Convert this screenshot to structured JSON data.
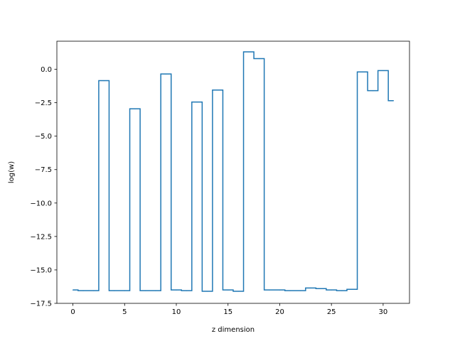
{
  "chart_data": {
    "type": "line",
    "drawstyle": "steps-mid",
    "xlabel": "z dimension",
    "ylabel": "log(w)",
    "xlim": [
      -1.55,
      32.55
    ],
    "ylim": [
      -17.5,
      2.1
    ],
    "xticks": [
      0,
      5,
      10,
      15,
      20,
      25,
      30
    ],
    "xtick_labels": [
      "0",
      "5",
      "10",
      "15",
      "20",
      "25",
      "30"
    ],
    "yticks": [
      0.0,
      -2.5,
      -5.0,
      -7.5,
      -10.0,
      -12.5,
      -15.0,
      -17.5
    ],
    "ytick_labels": [
      "0.0",
      "−2.5",
      "−5.0",
      "−7.5",
      "−10.0",
      "−12.5",
      "−15.0",
      "−17.5"
    ],
    "series": [
      {
        "color": "#1f77b4",
        "x": [
          0,
          1,
          2,
          3,
          4,
          5,
          6,
          7,
          8,
          9,
          10,
          11,
          12,
          13,
          14,
          15,
          16,
          17,
          18,
          19,
          20,
          21,
          22,
          23,
          24,
          25,
          26,
          27,
          28,
          29,
          30,
          31
        ],
        "y": [
          -16.5,
          -16.55,
          -16.55,
          -0.85,
          -16.55,
          -16.55,
          -2.95,
          -16.55,
          -16.55,
          -0.35,
          -16.5,
          -16.55,
          -2.45,
          -16.6,
          -1.55,
          -16.5,
          -16.6,
          1.3,
          0.8,
          -16.5,
          -16.5,
          -16.55,
          -16.55,
          -16.35,
          -16.4,
          -16.5,
          -16.55,
          -16.45,
          -0.2,
          -1.6,
          -0.1,
          -2.35
        ]
      }
    ]
  }
}
